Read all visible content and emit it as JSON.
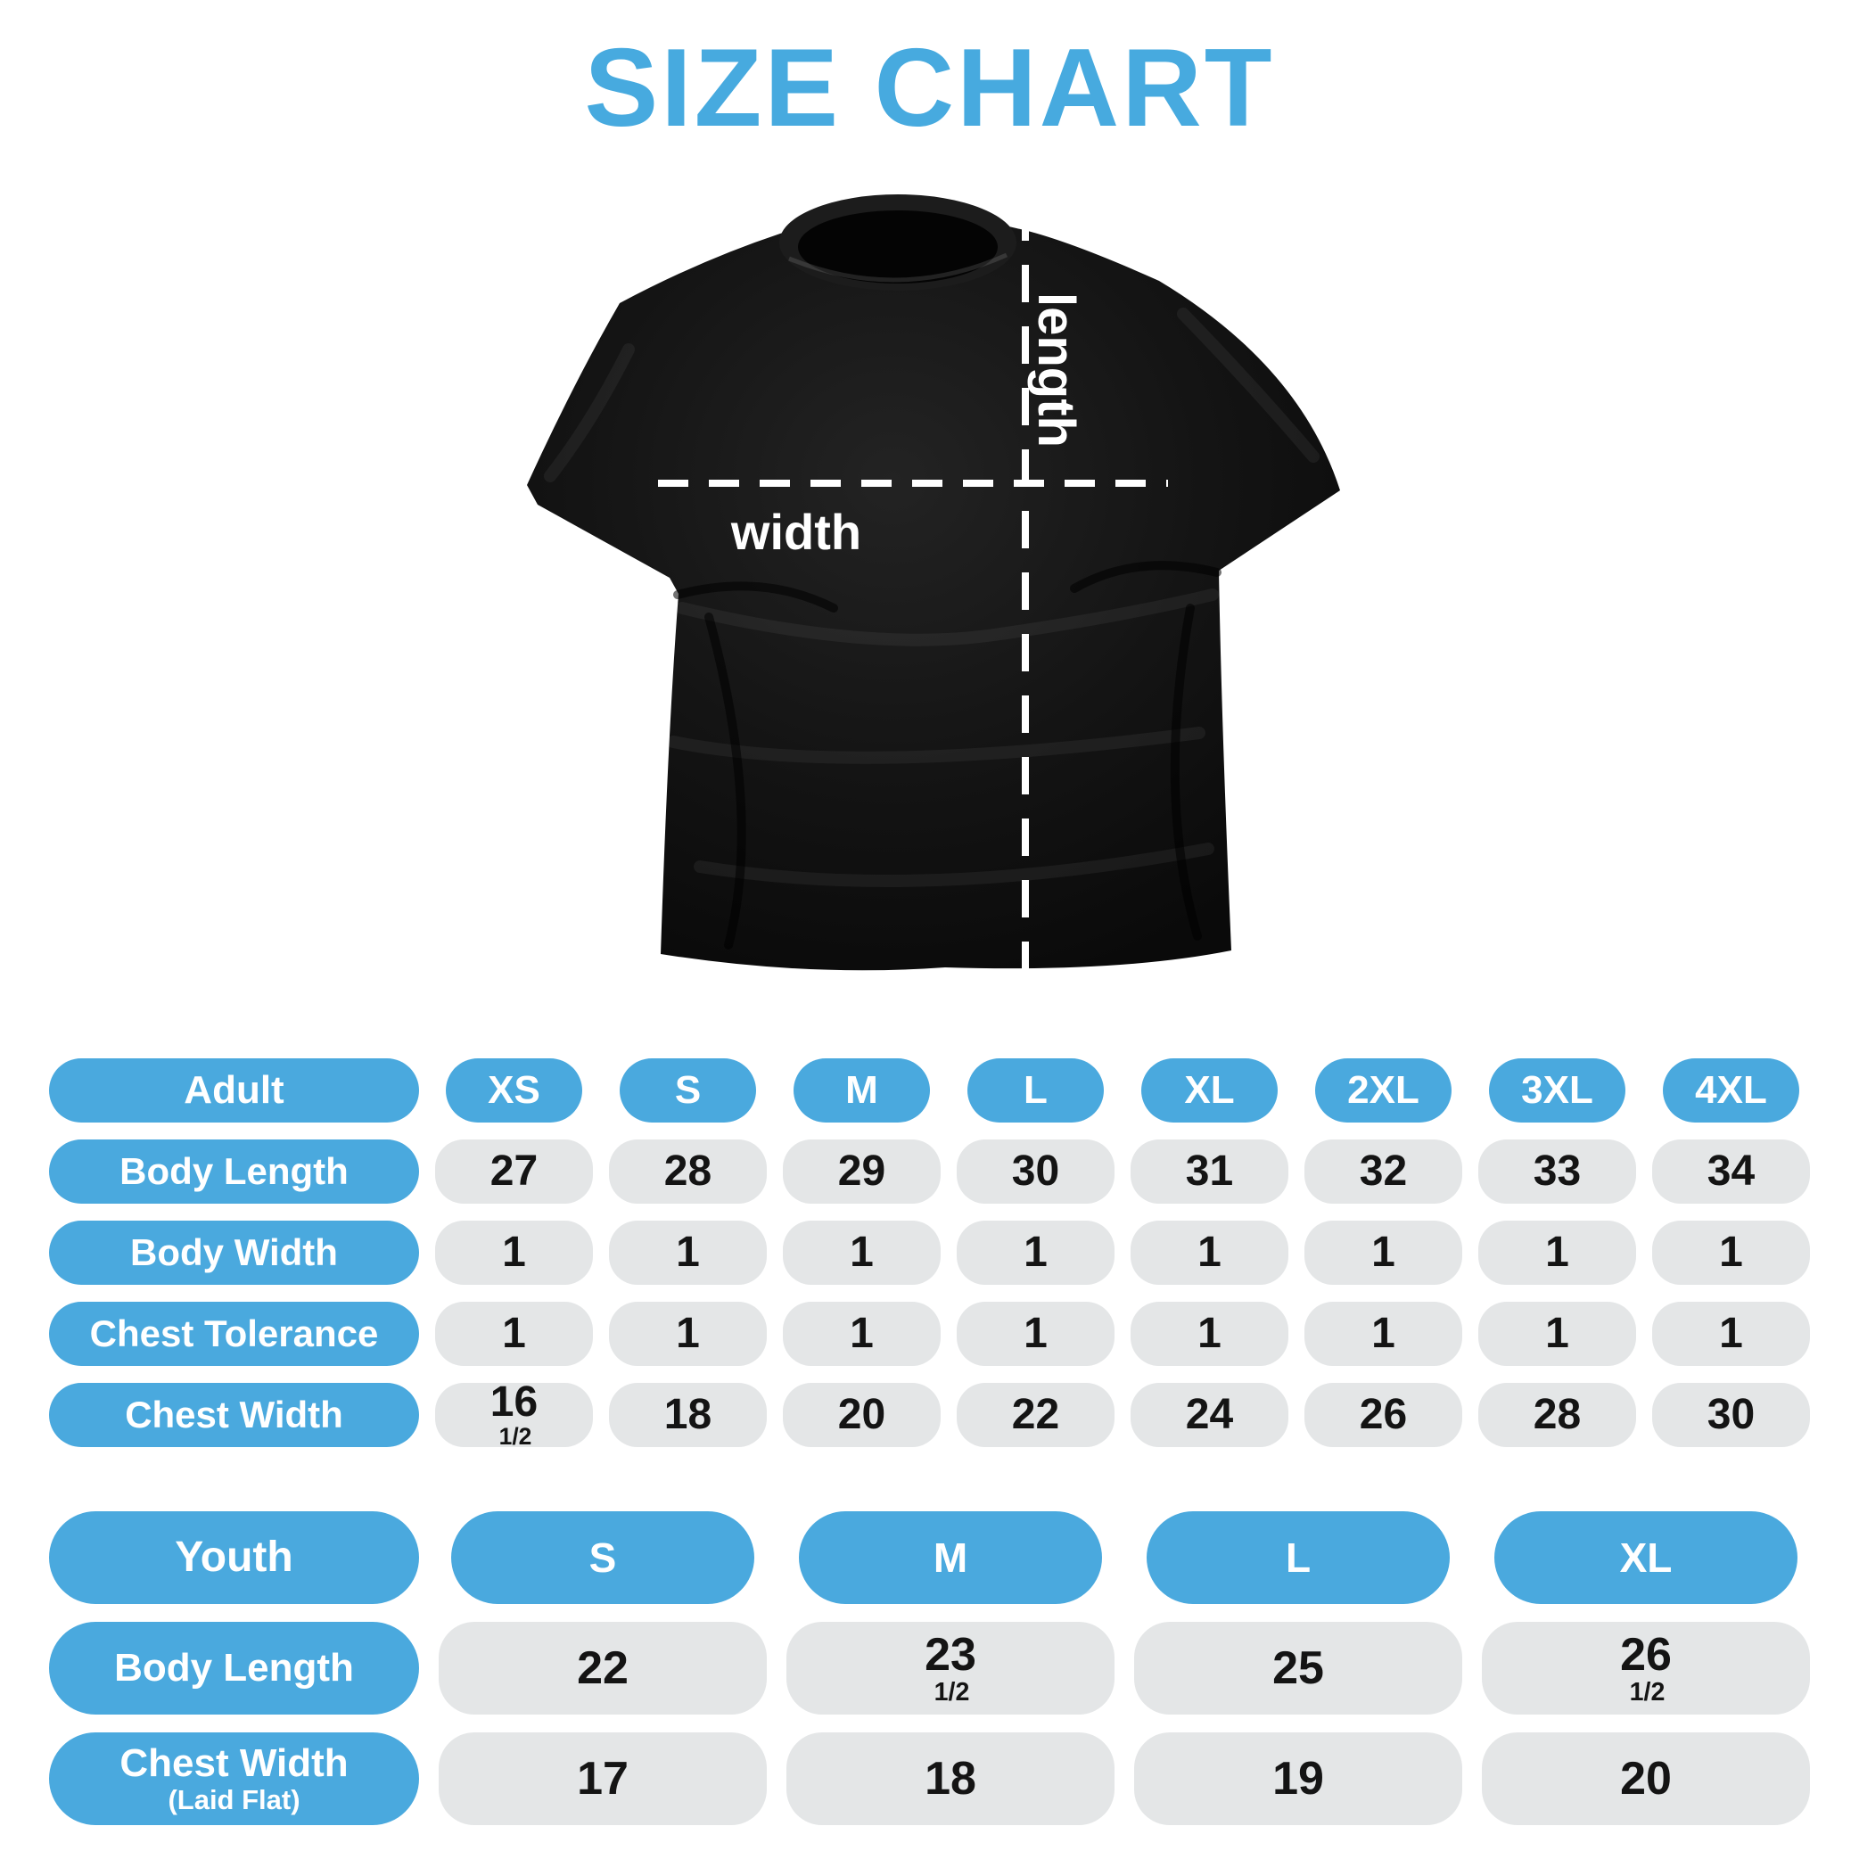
{
  "title": "SIZE CHART",
  "colors": {
    "accent_blue": "#47AADF",
    "pill_blue": "#4AA9DE",
    "pill_gray": "#E4E6E7",
    "shirt_black": "#0D0D0D",
    "value_text": "#141414"
  },
  "diagram": {
    "length_label": "length",
    "width_label": "width"
  },
  "adult": {
    "label": "Adult",
    "sizes": [
      "XS",
      "S",
      "M",
      "L",
      "XL",
      "2XL",
      "3XL",
      "4XL"
    ],
    "rows": [
      {
        "label": "Body Length",
        "values": [
          "27",
          "28",
          "29",
          "30",
          "31",
          "32",
          "33",
          "34"
        ]
      },
      {
        "label": "Body Width",
        "values": [
          "1",
          "1",
          "1",
          "1",
          "1",
          "1",
          "1",
          "1"
        ]
      },
      {
        "label": "Chest Tolerance",
        "values": [
          "1",
          "1",
          "1",
          "1",
          "1",
          "1",
          "1",
          "1"
        ]
      },
      {
        "label": "Chest Width",
        "values": [
          {
            "whole": "16",
            "frac": "1/2"
          },
          "18",
          "20",
          "22",
          "24",
          "26",
          "28",
          "30"
        ]
      }
    ]
  },
  "youth": {
    "label": "Youth",
    "sizes": [
      "S",
      "M",
      "L",
      "XL"
    ],
    "rows": [
      {
        "label": "Body Length",
        "sublabel": "",
        "values": [
          "22",
          {
            "whole": "23",
            "frac": "1/2"
          },
          "25",
          {
            "whole": "26",
            "frac": "1/2"
          }
        ]
      },
      {
        "label": "Chest Width",
        "sublabel": "(Laid Flat)",
        "values": [
          "17",
          "18",
          "19",
          "20"
        ]
      }
    ]
  }
}
